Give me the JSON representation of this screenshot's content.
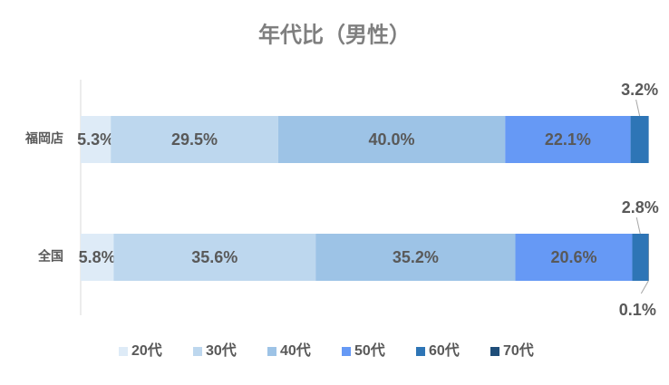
{
  "chart_data": {
    "type": "stacked-barh",
    "title": "年代比（男性）",
    "categories": [
      "福岡店",
      "全国"
    ],
    "xlim": [
      0,
      100
    ],
    "legend": "bottom",
    "series": [
      {
        "name": "20代",
        "color": "#deebf7",
        "values": [
          5.3,
          5.8
        ],
        "value_labels": [
          "5.3%",
          "5.8%"
        ]
      },
      {
        "name": "30代",
        "color": "#bdd7ee",
        "values": [
          29.5,
          35.6
        ],
        "value_labels": [
          "29.5%",
          "35.6%"
        ]
      },
      {
        "name": "40代",
        "color": "#9dc3e6",
        "values": [
          40.0,
          35.2
        ],
        "value_labels": [
          "40.0%",
          "35.2%"
        ]
      },
      {
        "name": "50代",
        "color": "#6699f5",
        "values": [
          22.1,
          20.6
        ],
        "value_labels": [
          "22.1%",
          "20.6%"
        ]
      },
      {
        "name": "60代",
        "color": "#2e75b6",
        "values": [
          3.2,
          2.8
        ],
        "value_labels": [
          "3.2%",
          "2.8%"
        ]
      },
      {
        "name": "70代",
        "color": "#1f4e79",
        "values": [
          0,
          0.1
        ],
        "value_labels": [
          null,
          "0.1%"
        ]
      }
    ]
  }
}
